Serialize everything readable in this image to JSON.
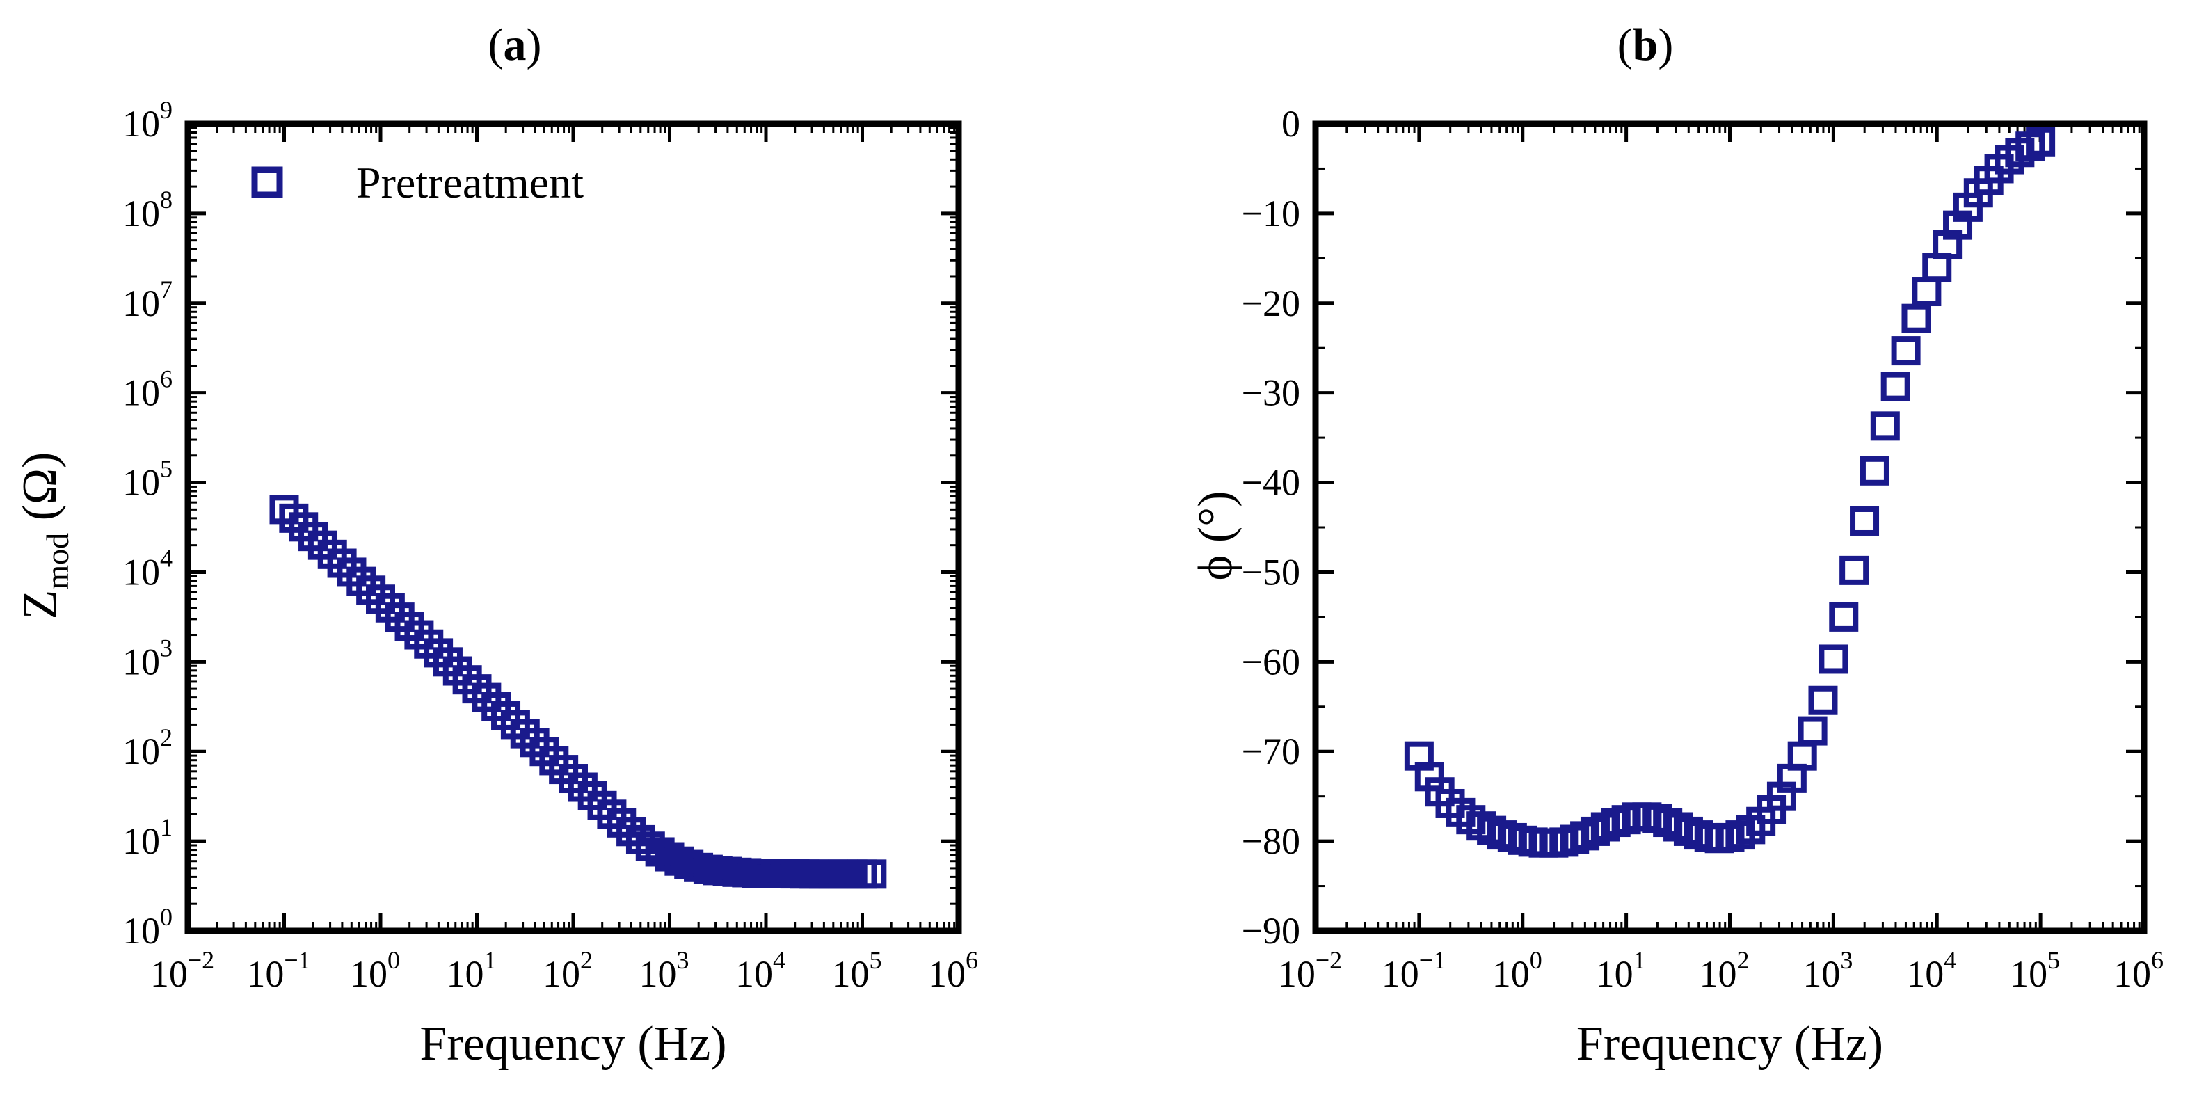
{
  "figure": {
    "panels": [
      "a",
      "b"
    ]
  },
  "colors": {
    "marker": "#1a1a8c",
    "axis": "#000000"
  },
  "chart_data": [
    {
      "type": "scatter",
      "panel_label": "a",
      "title": "",
      "xlabel": "Frequency (Hz)",
      "ylabel_main": "Z",
      "ylabel_sub": "mod",
      "ylabel_unit": "(Ω)",
      "xscale": "log",
      "yscale": "log",
      "xlim_exp": [
        -2,
        6
      ],
      "ylim_exp": [
        0,
        9
      ],
      "x_tick_base": "10",
      "x_tick_exponents": [
        "−2",
        "−1",
        "0",
        "1",
        "2",
        "3",
        "4",
        "5",
        "6"
      ],
      "y_tick_base": "10",
      "y_tick_exponents": [
        "0",
        "1",
        "2",
        "3",
        "4",
        "5",
        "6",
        "7",
        "8",
        "9"
      ],
      "legend": {
        "label": "Pretreatment",
        "placement": "top-left"
      },
      "marker": "open-square",
      "series": [
        {
          "name": "Pretreatment",
          "x": [
            0.1,
            0.1259,
            0.1585,
            0.1995,
            0.2512,
            0.3162,
            0.3981,
            0.5012,
            0.631,
            0.7943,
            1.0,
            1.259,
            1.585,
            1.995,
            2.512,
            3.162,
            3.981,
            5.012,
            6.31,
            7.943,
            10.0,
            12.59,
            15.85,
            19.95,
            25.12,
            31.62,
            39.81,
            50.12,
            63.1,
            79.43,
            100.0,
            125.9,
            158.5,
            199.5,
            251.2,
            316.2,
            398.1,
            501.2,
            631.0,
            794.3,
            1000,
            1259,
            1585,
            1995,
            2512,
            3162,
            3981,
            5012,
            6310,
            7943,
            10000,
            12590,
            15850,
            19950,
            25120,
            31620,
            39810,
            50120,
            63100,
            79430,
            100000,
            125900
          ],
          "y": [
            50000,
            40000,
            32000,
            25000,
            20000,
            15800,
            12600,
            10000,
            7900,
            6300,
            5000,
            4000,
            3150,
            2500,
            2000,
            1580,
            1260,
            1000,
            790,
            630,
            500,
            400,
            315,
            250,
            200,
            158,
            126,
            100,
            79,
            63,
            50,
            40,
            32,
            25,
            20,
            16,
            12.8,
            10.4,
            8.8,
            7.6,
            6.7,
            6.0,
            5.5,
            5.1,
            4.85,
            4.7,
            4.6,
            4.5,
            4.45,
            4.4,
            4.38,
            4.35,
            4.33,
            4.32,
            4.31,
            4.3,
            4.3,
            4.3,
            4.3,
            4.3,
            4.3,
            4.3
          ]
        }
      ]
    },
    {
      "type": "scatter",
      "panel_label": "b",
      "title": "",
      "xlabel": "Frequency (Hz)",
      "ylabel_main": "ϕ",
      "ylabel_unit": "(°)",
      "xscale": "log",
      "yscale": "linear",
      "xlim_exp": [
        -2,
        6
      ],
      "ylim": [
        -90,
        0
      ],
      "x_tick_base": "10",
      "x_tick_exponents": [
        "−2",
        "−1",
        "0",
        "1",
        "2",
        "3",
        "4",
        "5",
        "6"
      ],
      "y_ticks": [
        "0",
        "−10",
        "−20",
        "−30",
        "−40",
        "−50",
        "−60",
        "−70",
        "−80",
        "−90"
      ],
      "marker": "open-square",
      "series": [
        {
          "name": "Pretreatment",
          "x": [
            0.1,
            0.1259,
            0.1585,
            0.1995,
            0.2512,
            0.3162,
            0.3981,
            0.5012,
            0.631,
            0.7943,
            1.0,
            1.259,
            1.585,
            1.995,
            2.512,
            3.162,
            3.981,
            5.012,
            6.31,
            7.943,
            10.0,
            12.59,
            15.85,
            19.95,
            25.12,
            31.62,
            39.81,
            50.12,
            63.1,
            79.43,
            100.0,
            125.9,
            158.5,
            199.5,
            251.2,
            316.2,
            398.1,
            501.2,
            631.0,
            794.3,
            1000,
            1259,
            1585,
            1995,
            2512,
            3162,
            3981,
            5012,
            6310,
            7943,
            10000,
            12590,
            15850,
            19950,
            25120,
            31620,
            39810,
            50120,
            63100,
            79430,
            100000
          ],
          "y": [
            -70.5,
            -72.8,
            -74.5,
            -75.8,
            -76.8,
            -77.6,
            -78.3,
            -78.8,
            -79.3,
            -79.6,
            -79.9,
            -80.1,
            -80.2,
            -80.2,
            -80.1,
            -79.8,
            -79.4,
            -78.9,
            -78.4,
            -77.9,
            -77.6,
            -77.3,
            -77.3,
            -77.5,
            -77.9,
            -78.4,
            -78.9,
            -79.3,
            -79.6,
            -79.7,
            -79.6,
            -79.3,
            -78.7,
            -77.8,
            -76.5,
            -75,
            -73,
            -70.5,
            -67.7,
            -64.3,
            -59.7,
            -55,
            -49.8,
            -44.3,
            -38.7,
            -33.7,
            -29.3,
            -25.3,
            -21.7,
            -18.7,
            -16,
            -13.5,
            -11.3,
            -9.3,
            -7.7,
            -6.3,
            -5,
            -4,
            -3.2,
            -2.5,
            -2
          ]
        }
      ]
    }
  ]
}
